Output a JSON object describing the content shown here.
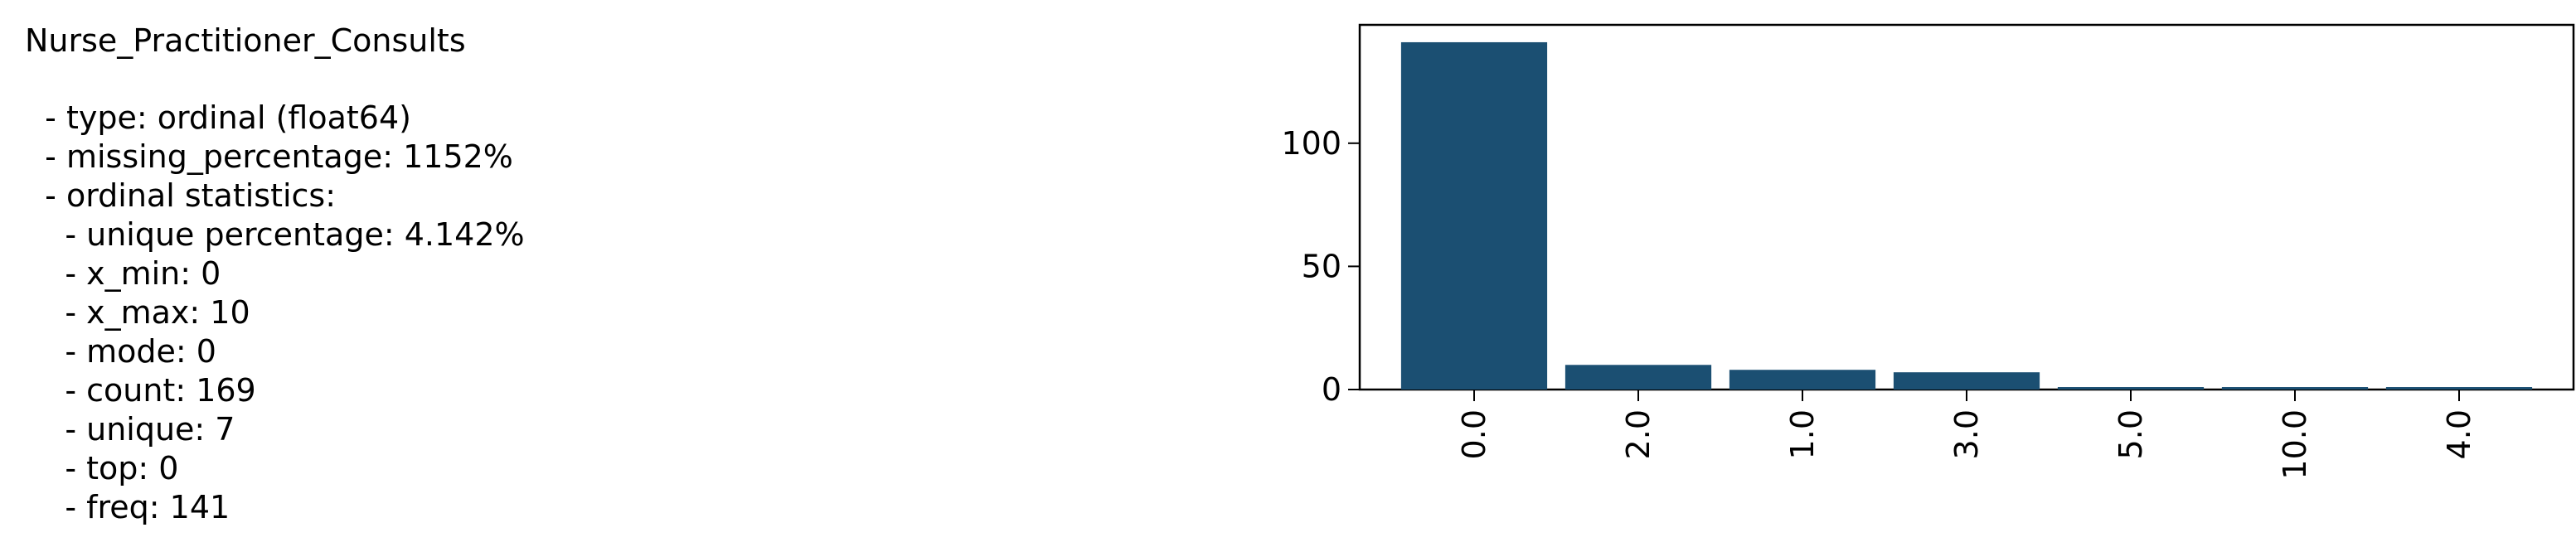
{
  "text": {
    "title": "Nurse_Practitioner_Consults",
    "lines": [
      "  - type: ordinal (float64)",
      "  - missing_percentage: 1152%",
      "  - ordinal statistics:",
      "    - unique percentage: 4.142%",
      "    - x_min: 0",
      "    - x_max: 10",
      "    - mode: 0",
      "    - count: 169",
      "    - unique: 7",
      "    - top: 0",
      "    - freq: 141"
    ]
  },
  "chart_data": {
    "type": "bar",
    "categories": [
      "0.0",
      "2.0",
      "1.0",
      "3.0",
      "5.0",
      "10.0",
      "4.0"
    ],
    "values": [
      141,
      10,
      8,
      7,
      1,
      1,
      1
    ],
    "color": "#1b4f72",
    "ylim": [
      0,
      148.05
    ],
    "yticks": [
      0,
      50,
      100
    ],
    "grid": false
  }
}
